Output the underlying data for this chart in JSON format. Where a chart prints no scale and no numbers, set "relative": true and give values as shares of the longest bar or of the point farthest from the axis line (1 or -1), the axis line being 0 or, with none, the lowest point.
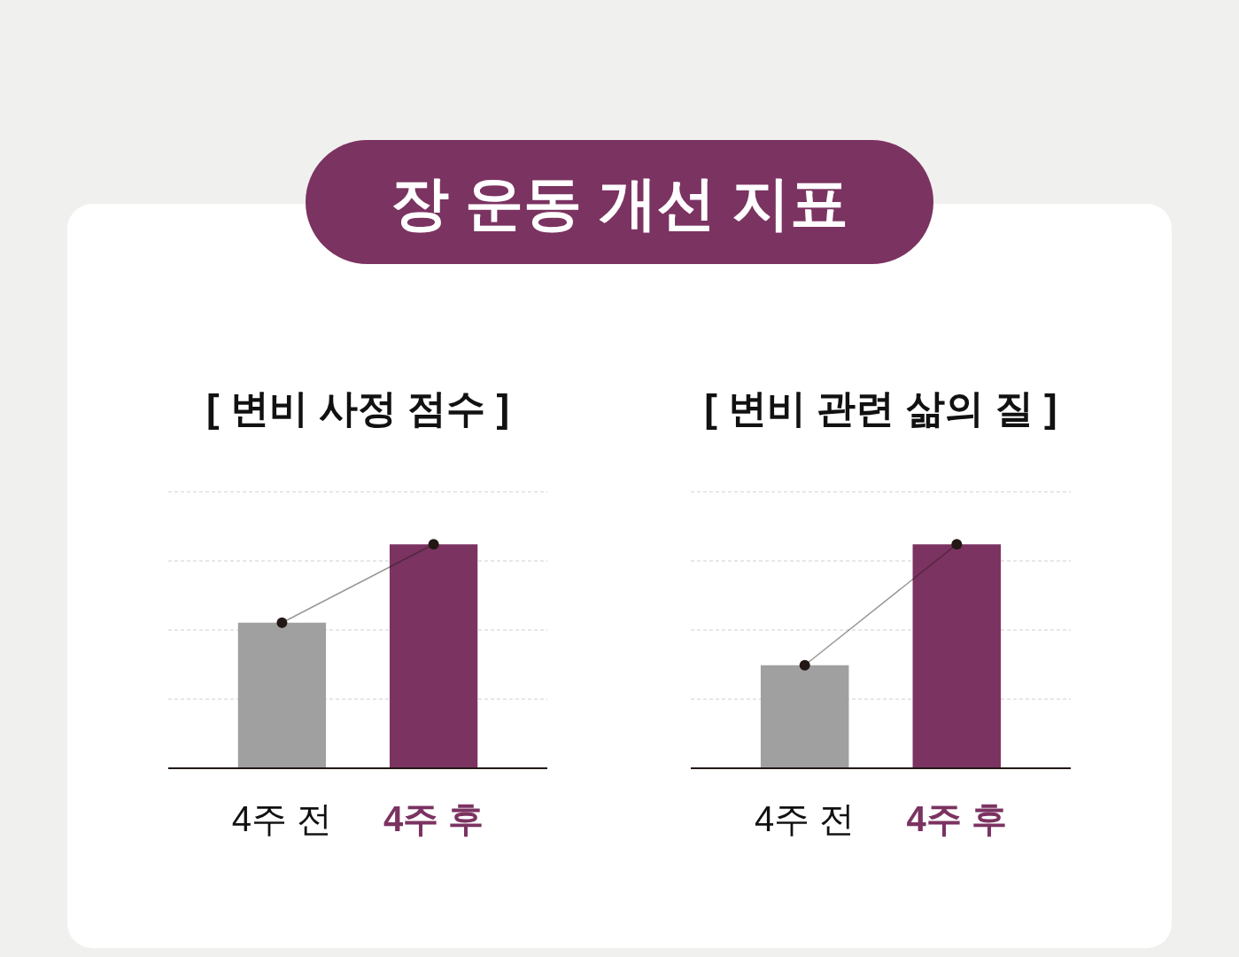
{
  "chart_data": [
    {
      "type": "other",
      "title": "장 운동 개선 지표"
    },
    {
      "type": "bar",
      "title": "[ 변비 사정 점수 ]",
      "categories": [
        "4주 전",
        "4주 후"
      ],
      "relative": true,
      "grid": "y",
      "series": [
        {
          "type": "bar",
          "colors": [
            "#a0a0a0",
            "#7b3361"
          ],
          "values": [
            0.65,
            1
          ]
        },
        {
          "type": "line",
          "color": "#231815",
          "marker": "circle",
          "values": [
            0.65,
            1
          ]
        }
      ]
    },
    {
      "type": "bar",
      "title": "[ 변비 관련 삶의 질 ]",
      "categories": [
        "4주 전",
        "4주 후"
      ],
      "relative": true,
      "grid": "y",
      "series": [
        {
          "type": "bar",
          "colors": [
            "#a0a0a0",
            "#7b3361"
          ],
          "values": [
            0.46,
            1
          ]
        },
        {
          "type": "line",
          "color": "#231815",
          "marker": "circle",
          "values": [
            0.46,
            1
          ]
        }
      ]
    }
  ]
}
